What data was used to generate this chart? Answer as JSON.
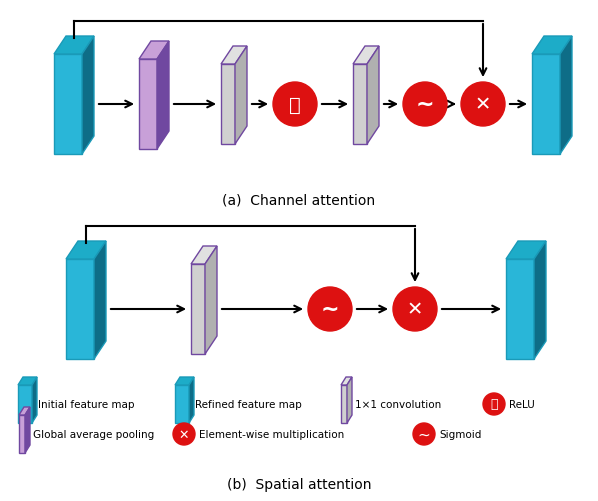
{
  "fig_width": 5.98,
  "fig_height": 5.02,
  "dpi": 100,
  "bg_color": "#ffffff",
  "teal_light": "#29b6d8",
  "teal_dark": "#1a9ab8",
  "teal_side": "#0e6d87",
  "teal_top": "#1dacc8",
  "purple_face": "#c8a0d8",
  "purple_border": "#7048a0",
  "gray_face": "#d0d0d0",
  "gray_side": "#b0b0b0",
  "gray_top": "#e0e0e0",
  "red_color": "#dd1111",
  "white_color": "#ffffff",
  "title_a": "(a)  Channel attention",
  "title_b": "(b)  Spatial attention",
  "legend_row1": [
    {
      "label": "Initial feature map",
      "type": "initial"
    },
    {
      "label": "Refined feature map",
      "type": "refined"
    },
    {
      "label": "1×1 convolution",
      "type": "conv1x1"
    },
    {
      "label": "ReLU",
      "type": "relu"
    }
  ],
  "legend_row2": [
    {
      "label": "Global average pooling",
      "type": "gap"
    },
    {
      "label": "Element-wise multiplication",
      "type": "elemwise"
    },
    {
      "label": "Sigmoid",
      "type": "sigmoid"
    }
  ]
}
